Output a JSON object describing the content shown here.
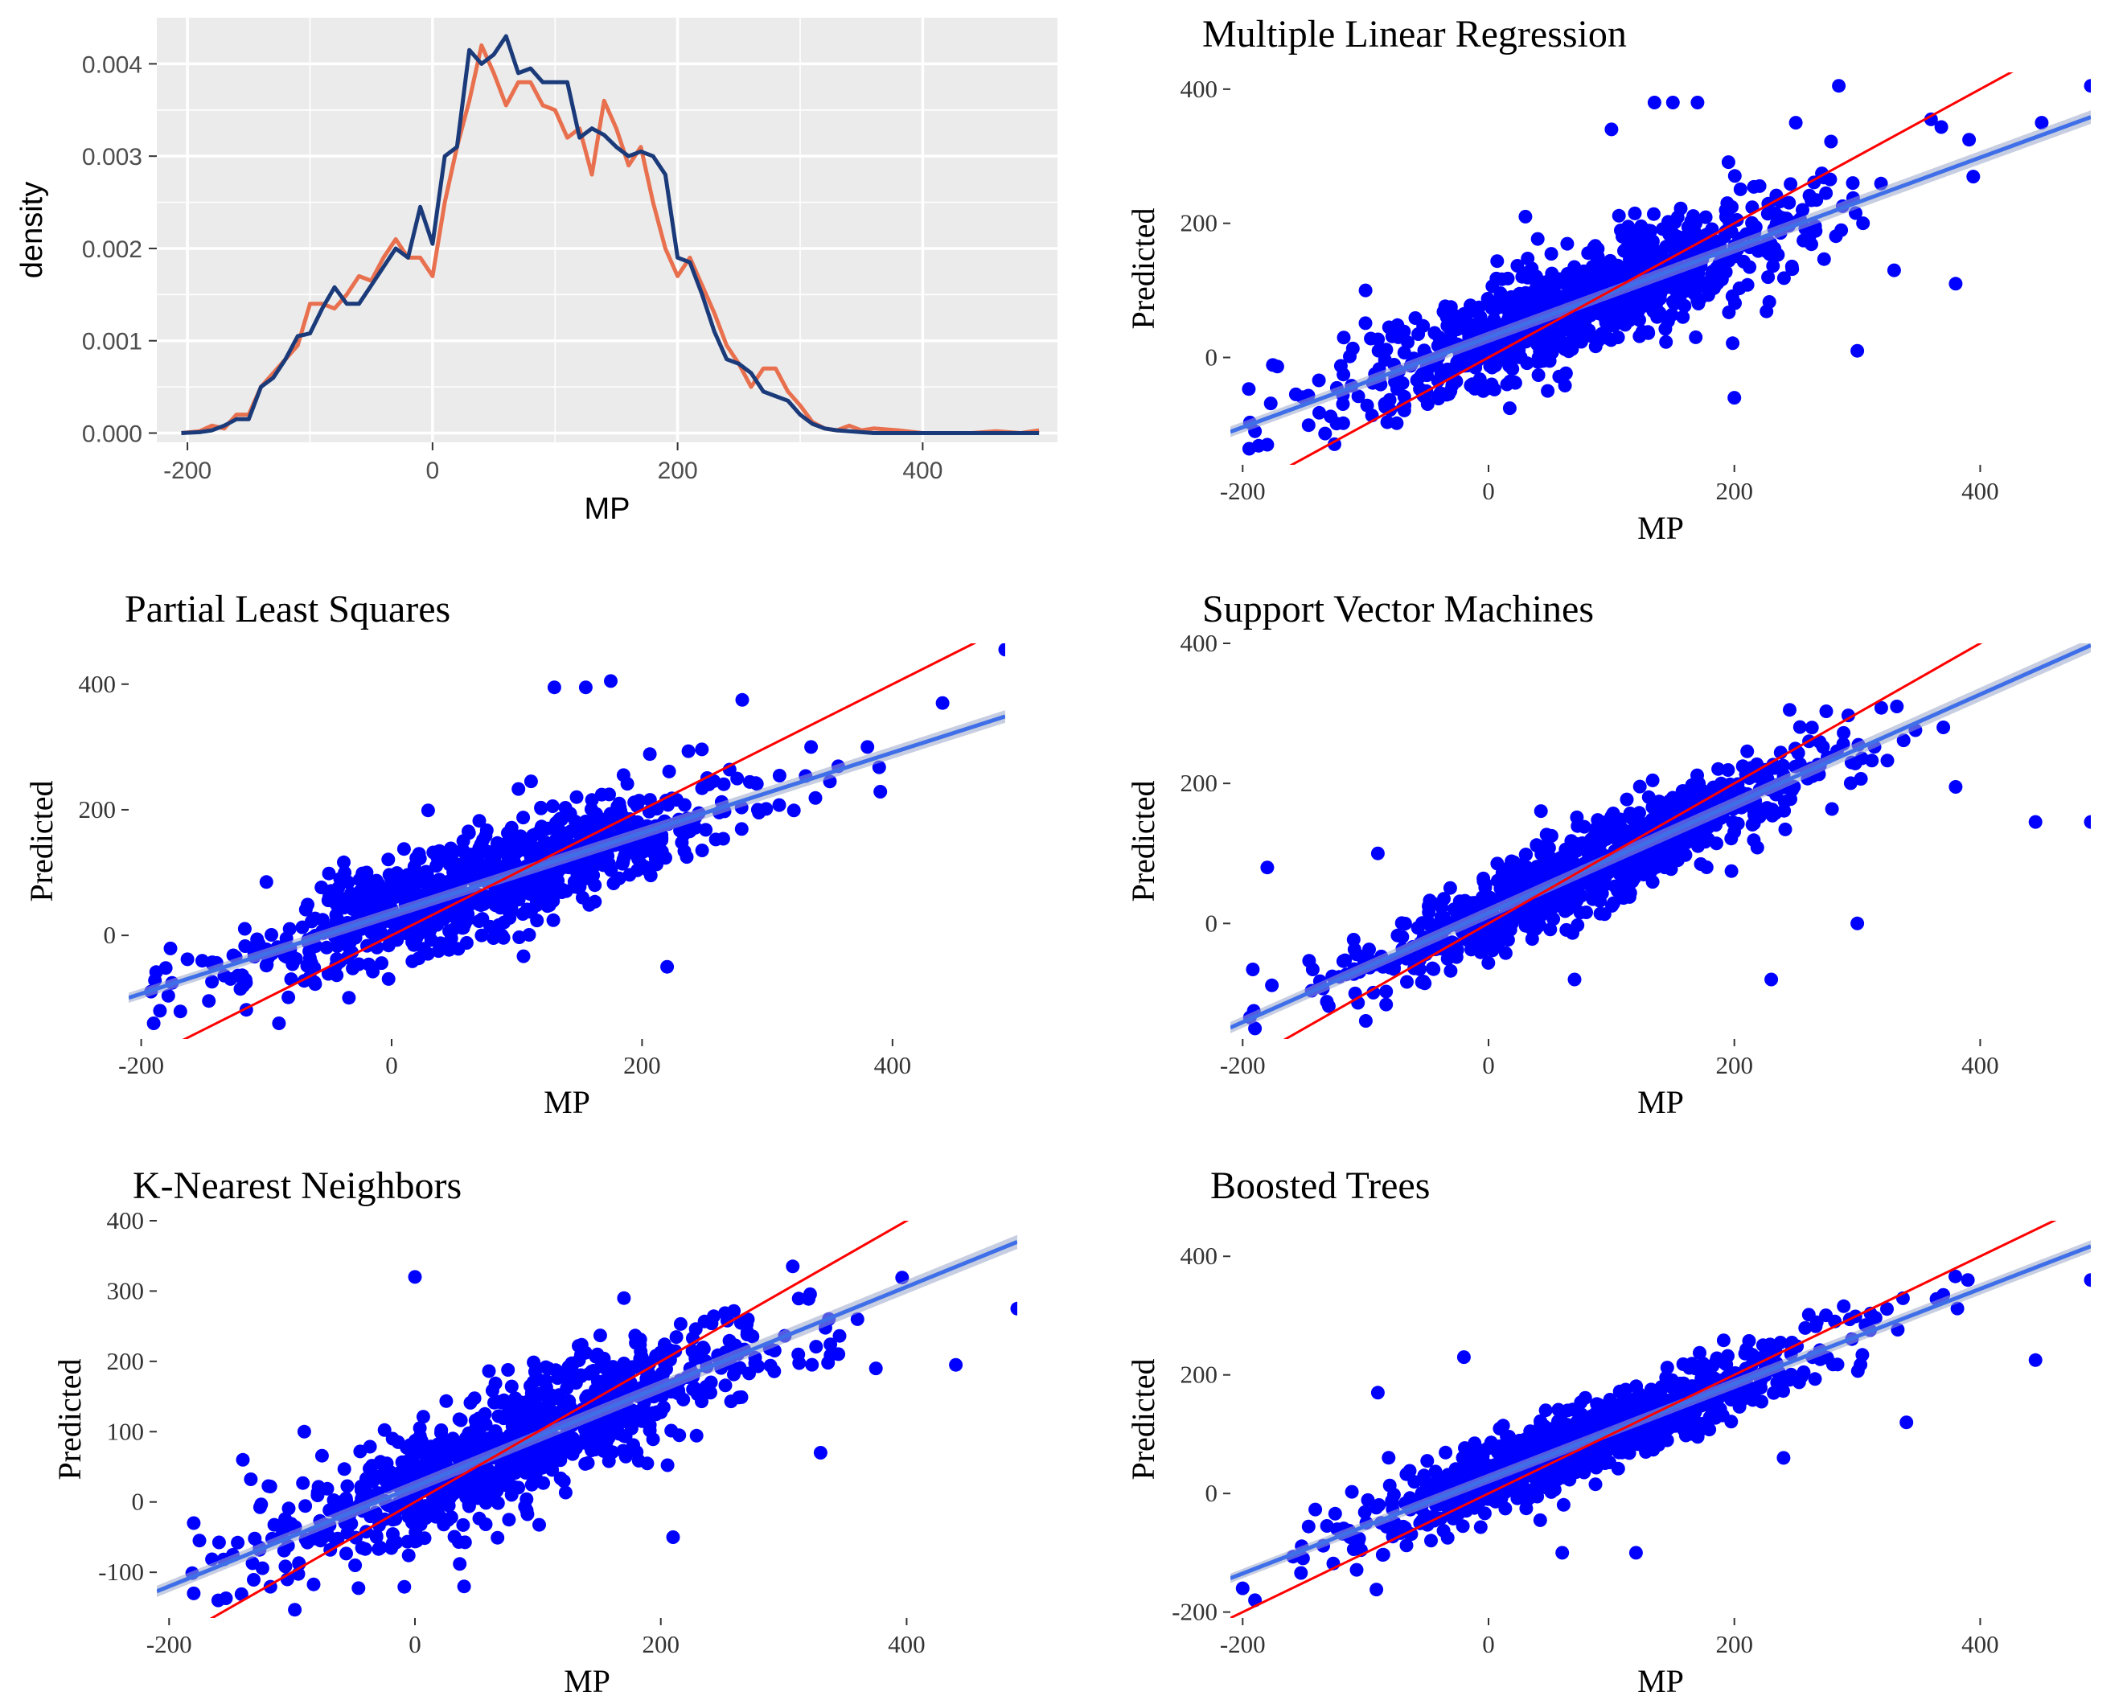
{
  "figure": {
    "colors": {
      "density_panel_bg": "#ebebeb",
      "grid": "#ffffff",
      "density_observed": "#e8704e",
      "density_predicted": "#1a3a7a",
      "points": "#0000ff",
      "fit_line": "#3f6fe8",
      "identity_line": "#ff0000"
    }
  },
  "chart_data": [
    {
      "type": "line",
      "xlabel": "MP",
      "ylabel": "density",
      "xlim": [
        -225,
        510
      ],
      "ylim": [
        -0.0001,
        0.0045
      ],
      "xticks": [
        "-200",
        "0",
        "200",
        "400"
      ],
      "yticks": [
        "0.000",
        "0.001",
        "0.002",
        "0.003",
        "0.004"
      ],
      "grid": true,
      "series": [
        {
          "color": "#e8704e",
          "x": [
            -205,
            -190,
            -180,
            -170,
            -160,
            -150,
            -140,
            -130,
            -120,
            -110,
            -100,
            -90,
            -80,
            -70,
            -60,
            -50,
            -40,
            -30,
            -20,
            -10,
            0,
            10,
            20,
            30,
            40,
            50,
            60,
            70,
            80,
            90,
            100,
            110,
            120,
            130,
            140,
            150,
            160,
            170,
            180,
            190,
            200,
            210,
            220,
            230,
            240,
            250,
            260,
            270,
            280,
            290,
            300,
            310,
            320,
            330,
            340,
            350,
            360,
            380,
            400,
            440,
            460,
            480,
            495
          ],
          "y": [
            0.0,
            2e-05,
            8e-05,
            5e-05,
            0.0002,
            0.0002,
            0.0005,
            0.00065,
            0.0008,
            0.00095,
            0.0014,
            0.0014,
            0.00135,
            0.0015,
            0.0017,
            0.00165,
            0.0019,
            0.0021,
            0.0019,
            0.0019,
            0.0017,
            0.0025,
            0.0031,
            0.0036,
            0.0042,
            0.0039,
            0.00355,
            0.0038,
            0.0038,
            0.00355,
            0.0035,
            0.0032,
            0.0033,
            0.0028,
            0.0036,
            0.0033,
            0.0029,
            0.0031,
            0.0025,
            0.002,
            0.0017,
            0.0019,
            0.0016,
            0.0013,
            0.00095,
            0.00075,
            0.0005,
            0.0007,
            0.0007,
            0.00045,
            0.0003,
            0.00012,
            5e-05,
            3e-05,
            8e-05,
            3e-05,
            5e-05,
            3e-05,
            0.0,
            0.0,
            2e-05,
            0.0,
            3e-05
          ]
        },
        {
          "color": "#1a3a7a",
          "x": [
            -205,
            -190,
            -180,
            -170,
            -160,
            -150,
            -140,
            -130,
            -120,
            -110,
            -100,
            -90,
            -80,
            -70,
            -60,
            -50,
            -40,
            -30,
            -20,
            -10,
            0,
            10,
            20,
            30,
            40,
            50,
            60,
            70,
            80,
            90,
            100,
            110,
            120,
            130,
            140,
            150,
            160,
            170,
            180,
            190,
            200,
            210,
            220,
            230,
            240,
            250,
            260,
            270,
            280,
            290,
            300,
            310,
            320,
            330,
            340,
            350,
            360,
            380,
            400,
            440,
            460,
            480,
            495
          ],
          "y": [
            0.0,
            1e-05,
            3e-05,
            8e-05,
            0.00015,
            0.00015,
            0.0005,
            0.0006,
            0.0008,
            0.00105,
            0.00108,
            0.00135,
            0.00158,
            0.0014,
            0.0014,
            0.0016,
            0.0018,
            0.002,
            0.0019,
            0.00245,
            0.00205,
            0.003,
            0.0031,
            0.00415,
            0.004,
            0.0041,
            0.0043,
            0.0039,
            0.00395,
            0.0038,
            0.0038,
            0.0038,
            0.0032,
            0.0033,
            0.00323,
            0.0031,
            0.003,
            0.00305,
            0.003,
            0.0028,
            0.0019,
            0.00185,
            0.0015,
            0.0011,
            0.0008,
            0.00075,
            0.00065,
            0.00045,
            0.0004,
            0.00035,
            0.0002,
            0.0001,
            5e-05,
            3e-05,
            2e-05,
            1e-05,
            0.0,
            0.0,
            0.0,
            0.0,
            0.0,
            0.0,
            0.0
          ]
        }
      ]
    },
    {
      "type": "scatter",
      "title": "Multiple Linear Regression",
      "xlabel": "MP",
      "ylabel": "Predicted",
      "xlim": [
        -210,
        490
      ],
      "ylim": [
        -160,
        425
      ],
      "xticks": [
        -200,
        0,
        200,
        400
      ],
      "yticks": [
        0,
        200,
        400
      ],
      "grid": false,
      "fit": {
        "slope": 0.67,
        "intercept": 30
      },
      "identity": true,
      "noise": 40,
      "outliers": [
        [
          490,
          405
        ],
        [
          450,
          350
        ],
        [
          360,
          355
        ],
        [
          285,
          405
        ],
        [
          170,
          380
        ],
        [
          150,
          380
        ],
        [
          135,
          380
        ],
        [
          -180,
          -130
        ],
        [
          -190,
          -110
        ],
        [
          300,
          10
        ],
        [
          330,
          130
        ],
        [
          380,
          110
        ],
        [
          200,
          -60
        ],
        [
          100,
          340
        ],
        [
          250,
          350
        ],
        [
          -100,
          100
        ],
        [
          30,
          210
        ]
      ]
    },
    {
      "type": "scatter",
      "title": "Partial Least Squares",
      "xlabel": "MP",
      "ylabel": "Predicted",
      "xlim": [
        -210,
        490
      ],
      "ylim": [
        -165,
        465
      ],
      "xticks": [
        -200,
        0,
        200,
        400
      ],
      "yticks": [
        0,
        200,
        400
      ],
      "grid": false,
      "fit": {
        "slope": 0.64,
        "intercept": 35
      },
      "identity": true,
      "noise": 42,
      "outliers": [
        [
          490,
          455
        ],
        [
          440,
          370
        ],
        [
          280,
          375
        ],
        [
          175,
          405
        ],
        [
          155,
          395
        ],
        [
          130,
          395
        ],
        [
          -185,
          -120
        ],
        [
          -190,
          -140
        ],
        [
          -90,
          -140
        ],
        [
          380,
          300
        ],
        [
          335,
          300
        ],
        [
          350,
          245
        ],
        [
          220,
          -50
        ],
        [
          -100,
          85
        ],
        [
          -20,
          100
        ]
      ]
    },
    {
      "type": "scatter",
      "title": "Support Vector Machines",
      "xlabel": "MP",
      "ylabel": "Predicted",
      "xlim": [
        -210,
        490
      ],
      "ylim": [
        -165,
        400
      ],
      "xticks": [
        -200,
        0,
        200,
        400
      ],
      "yticks": [
        0,
        200,
        400
      ],
      "grid": false,
      "fit": {
        "slope": 0.78,
        "intercept": 15
      },
      "identity": true,
      "noise": 32,
      "outliers": [
        [
          490,
          145
        ],
        [
          445,
          145
        ],
        [
          380,
          195
        ],
        [
          370,
          280
        ],
        [
          300,
          0
        ],
        [
          245,
          305
        ],
        [
          230,
          -80
        ],
        [
          -180,
          80
        ],
        [
          -90,
          100
        ],
        [
          -190,
          -150
        ],
        [
          -100,
          -60
        ],
        [
          70,
          -80
        ]
      ]
    },
    {
      "type": "scatter",
      "title": "K-Nearest Neighbors",
      "xlabel": "MP",
      "ylabel": "Predicted",
      "xlim": [
        -210,
        490
      ],
      "ylim": [
        -165,
        400
      ],
      "xticks": [
        -200,
        0,
        200,
        400
      ],
      "yticks": [
        -100,
        0,
        100,
        200,
        300,
        400
      ],
      "grid": false,
      "fit": {
        "slope": 0.71,
        "intercept": 22
      },
      "identity": true,
      "noise": 45,
      "outliers": [
        [
          490,
          275
        ],
        [
          440,
          195
        ],
        [
          375,
          190
        ],
        [
          360,
          260
        ],
        [
          330,
          70
        ],
        [
          210,
          -50
        ],
        [
          170,
          290
        ],
        [
          -180,
          -30
        ],
        [
          -140,
          60
        ],
        [
          -90,
          100
        ],
        [
          -180,
          -130
        ],
        [
          -160,
          -140
        ],
        [
          40,
          -120
        ],
        [
          0,
          320
        ]
      ]
    },
    {
      "type": "scatter",
      "title": "Boosted Trees",
      "xlabel": "MP",
      "ylabel": "Predicted",
      "xlim": [
        -210,
        490
      ],
      "ylim": [
        -210,
        460
      ],
      "xticks": [
        -200,
        0,
        200,
        400
      ],
      "yticks": [
        -200,
        0,
        200,
        400
      ],
      "grid": false,
      "fit": {
        "slope": 0.8,
        "intercept": 25
      },
      "identity": true,
      "noise": 32,
      "outliers": [
        [
          490,
          360
        ],
        [
          445,
          225
        ],
        [
          390,
          360
        ],
        [
          370,
          335
        ],
        [
          340,
          120
        ],
        [
          240,
          60
        ],
        [
          -90,
          170
        ],
        [
          -190,
          -180
        ],
        [
          -200,
          -160
        ],
        [
          60,
          -100
        ],
        [
          120,
          -100
        ],
        [
          -20,
          230
        ]
      ]
    }
  ]
}
